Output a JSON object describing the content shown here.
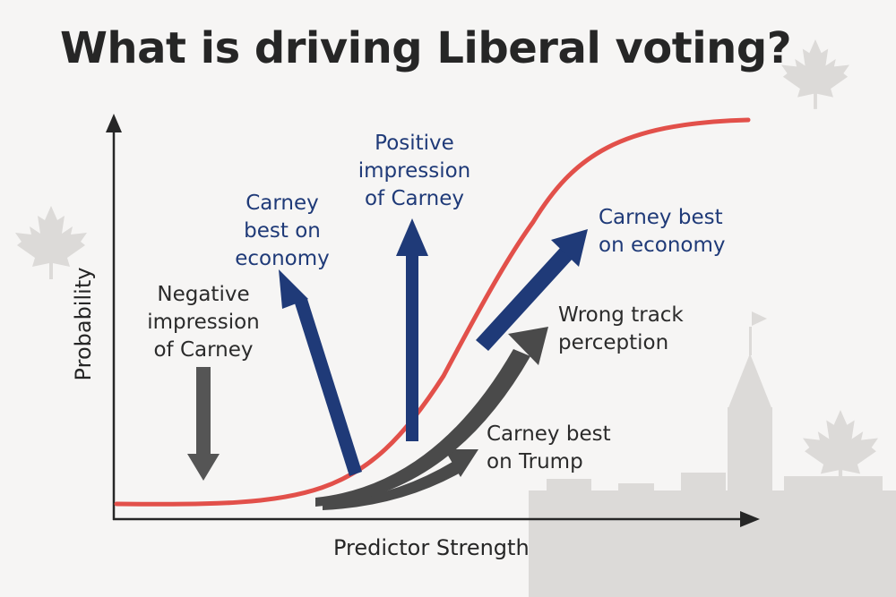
{
  "title": "What is driving Liberal voting?",
  "axes": {
    "x_label": "Predictor Strength",
    "y_label": "Probability"
  },
  "labels": {
    "negative": [
      "Negative",
      "impression",
      "of Carney"
    ],
    "carney_economy_left": [
      "Carney",
      "best on",
      "economy"
    ],
    "positive": [
      "Positive",
      "impression",
      "of Carney"
    ],
    "carney_economy_right": [
      "Carney best",
      "on economy"
    ],
    "wrong_track": [
      "Wrong track",
      "perception"
    ],
    "carney_trump": [
      "Carney best",
      "on Trump"
    ]
  },
  "colors": {
    "curve": "#e2504a",
    "positive_arrow": "#1f3a78",
    "neutral_arrow": "#4a4a4a",
    "negative_arrow": "#555555",
    "silhouette": "#dcdad8"
  },
  "decorations": [
    "maple-leaf-icon",
    "parliament-silhouette"
  ]
}
